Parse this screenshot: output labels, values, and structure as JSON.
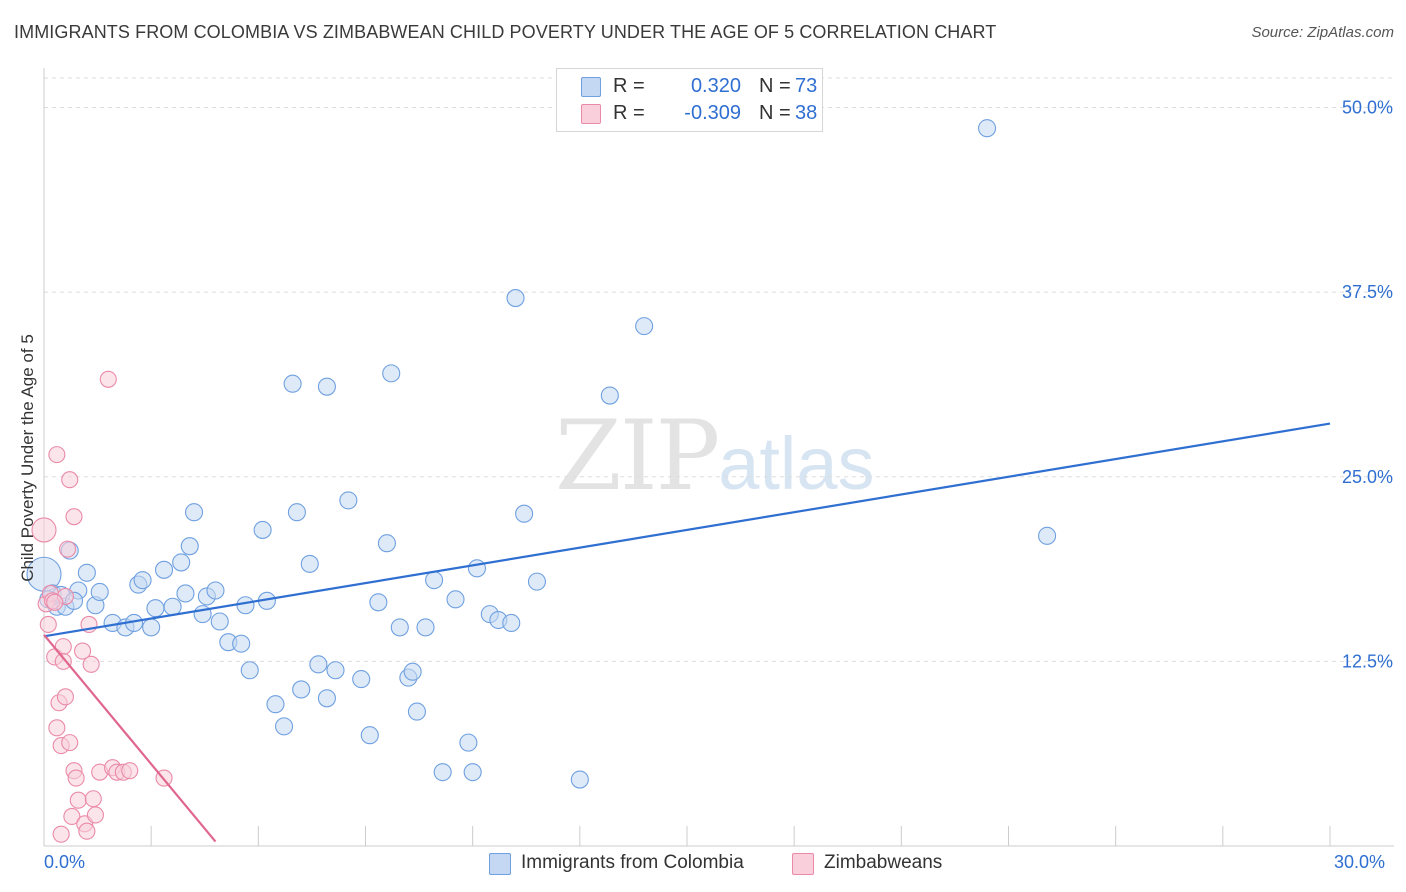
{
  "header": {
    "title": "IMMIGRANTS FROM COLOMBIA VS ZIMBABWEAN CHILD POVERTY UNDER THE AGE OF 5 CORRELATION CHART",
    "source": "Source: ZipAtlas.com"
  },
  "watermark": {
    "zip": "ZIP",
    "atlas": "atlas"
  },
  "legend_top": [
    {
      "r_label": "R =",
      "r_value": "0.320",
      "n_label": "N =",
      "n_value": "73",
      "color": "#a9c6ee"
    },
    {
      "r_label": "R =",
      "r_value": "-0.309",
      "n_label": "N =",
      "n_value": "38",
      "color": "#f5b8ca"
    }
  ],
  "legend_bottom": [
    {
      "label": "Immigrants from Colombia",
      "color": "#a9c6ee"
    },
    {
      "label": "Zimbabweans",
      "color": "#f5b8ca"
    }
  ],
  "chart_data": {
    "type": "scatter",
    "title": "IMMIGRANTS FROM COLOMBIA VS ZIMBABWEAN CHILD POVERTY UNDER THE AGE OF 5 CORRELATION CHART",
    "xlabel": "",
    "ylabel": "Child Poverty Under the Age of 5",
    "xlim": [
      0,
      30
    ],
    "ylim": [
      0,
      52
    ],
    "x_tick_labels": [
      "0.0%",
      "30.0%"
    ],
    "y_ticks": [
      12.5,
      25.0,
      37.5,
      50.0
    ],
    "y_tick_labels": [
      "12.5%",
      "25.0%",
      "37.5%",
      "50.0%"
    ],
    "grid": true,
    "series": [
      {
        "name": "Immigrants from Colombia",
        "color": "#6fa0e0",
        "fill": "#c5d8f3",
        "trend": {
          "x": [
            0,
            30
          ],
          "y": [
            14.2,
            28.6
          ],
          "color": "#2f6fd1"
        },
        "points": [
          [
            0.0,
            18.4
          ],
          [
            0.2,
            17.1
          ],
          [
            0.3,
            16.2
          ],
          [
            0.5,
            16.2
          ],
          [
            0.6,
            20.0
          ],
          [
            0.8,
            17.3
          ],
          [
            1.0,
            18.5
          ],
          [
            1.2,
            16.3
          ],
          [
            1.3,
            17.2
          ],
          [
            1.6,
            15.1
          ],
          [
            1.9,
            14.8
          ],
          [
            2.1,
            15.1
          ],
          [
            2.2,
            17.7
          ],
          [
            2.3,
            18.0
          ],
          [
            2.5,
            14.8
          ],
          [
            2.6,
            16.1
          ],
          [
            2.8,
            18.7
          ],
          [
            3.0,
            16.2
          ],
          [
            3.2,
            19.2
          ],
          [
            3.3,
            17.1
          ],
          [
            3.4,
            20.3
          ],
          [
            3.5,
            22.6
          ],
          [
            3.7,
            15.7
          ],
          [
            3.8,
            16.9
          ],
          [
            4.0,
            17.3
          ],
          [
            4.1,
            15.2
          ],
          [
            4.3,
            13.8
          ],
          [
            4.6,
            13.7
          ],
          [
            4.8,
            11.9
          ],
          [
            4.7,
            16.3
          ],
          [
            5.1,
            21.4
          ],
          [
            5.2,
            16.6
          ],
          [
            5.4,
            9.6
          ],
          [
            5.6,
            8.1
          ],
          [
            5.8,
            31.3
          ],
          [
            5.9,
            22.6
          ],
          [
            6.2,
            19.1
          ],
          [
            6.0,
            10.6
          ],
          [
            6.4,
            12.3
          ],
          [
            6.6,
            10.0
          ],
          [
            6.6,
            31.1
          ],
          [
            6.8,
            11.9
          ],
          [
            7.1,
            23.4
          ],
          [
            7.4,
            11.3
          ],
          [
            7.6,
            7.5
          ],
          [
            7.8,
            16.5
          ],
          [
            8.0,
            20.5
          ],
          [
            8.1,
            32.0
          ],
          [
            8.3,
            14.8
          ],
          [
            8.5,
            11.4
          ],
          [
            8.6,
            11.8
          ],
          [
            8.7,
            9.1
          ],
          [
            8.9,
            14.8
          ],
          [
            9.1,
            18.0
          ],
          [
            9.3,
            5.0
          ],
          [
            9.6,
            16.7
          ],
          [
            9.9,
            7.0
          ],
          [
            10.0,
            5.0
          ],
          [
            10.1,
            18.8
          ],
          [
            10.4,
            15.7
          ],
          [
            10.6,
            15.3
          ],
          [
            10.9,
            15.1
          ],
          [
            11.0,
            37.1
          ],
          [
            11.2,
            22.5
          ],
          [
            11.5,
            17.9
          ],
          [
            12.5,
            4.5
          ],
          [
            13.2,
            30.5
          ],
          [
            14.0,
            35.2
          ],
          [
            22.0,
            48.6
          ],
          [
            23.4,
            21.0
          ],
          [
            0.1,
            16.7
          ],
          [
            0.4,
            17.0
          ],
          [
            0.7,
            16.6
          ]
        ]
      },
      {
        "name": "Zimbabweans",
        "color": "#ea8aa8",
        "fill": "#f8cfdb",
        "trend": {
          "x": [
            0,
            4.0
          ],
          "y": [
            14.3,
            0.3
          ],
          "color": "#e06690"
        },
        "points": [
          [
            0.0,
            21.4
          ],
          [
            0.05,
            16.4
          ],
          [
            0.1,
            15.0
          ],
          [
            0.15,
            17.1
          ],
          [
            0.2,
            16.6
          ],
          [
            0.25,
            12.8
          ],
          [
            0.3,
            8.0
          ],
          [
            0.3,
            26.5
          ],
          [
            0.35,
            9.7
          ],
          [
            0.4,
            6.8
          ],
          [
            0.45,
            13.5
          ],
          [
            0.45,
            12.5
          ],
          [
            0.5,
            16.9
          ],
          [
            0.5,
            10.1
          ],
          [
            0.55,
            20.1
          ],
          [
            0.6,
            24.8
          ],
          [
            0.6,
            7.0
          ],
          [
            0.65,
            2.0
          ],
          [
            0.7,
            22.3
          ],
          [
            0.7,
            5.1
          ],
          [
            0.75,
            4.6
          ],
          [
            0.8,
            3.1
          ],
          [
            0.9,
            13.2
          ],
          [
            0.95,
            1.5
          ],
          [
            1.0,
            1.0
          ],
          [
            1.05,
            15.0
          ],
          [
            1.1,
            12.3
          ],
          [
            1.15,
            3.2
          ],
          [
            1.2,
            2.1
          ],
          [
            1.3,
            5.0
          ],
          [
            1.5,
            31.6
          ],
          [
            1.6,
            5.3
          ],
          [
            1.7,
            5.0
          ],
          [
            1.85,
            5.0
          ],
          [
            2.0,
            5.1
          ],
          [
            2.8,
            4.6
          ],
          [
            0.4,
            0.8
          ],
          [
            0.25,
            16.5
          ]
        ]
      }
    ]
  }
}
